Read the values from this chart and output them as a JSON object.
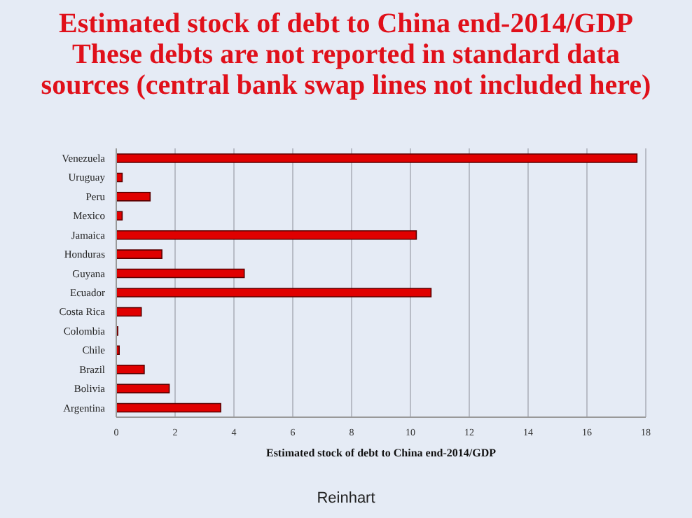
{
  "chart_data": {
    "type": "bar",
    "orientation": "horizontal",
    "title": "Estimated stock of debt to China end-2014/GDP",
    "subtitle": "These debts are not reported in standard data sources (central bank swap lines not included here)",
    "xlabel": "Estimated stock of debt to China end-2014/GDP",
    "categories": [
      "Venezuela",
      "Uruguay",
      "Peru",
      "Mexico",
      "Jamaica",
      "Honduras",
      "Guyana",
      "Ecuador",
      "Costa Rica",
      "Colombia",
      "Chile",
      "Brazil",
      "Bolivia",
      "Argentina"
    ],
    "values": [
      17.7,
      0.2,
      1.15,
      0.2,
      10.2,
      1.55,
      4.35,
      10.7,
      0.85,
      0.05,
      0.1,
      0.95,
      1.8,
      3.55
    ],
    "color": "#e00000",
    "xlim": [
      0,
      18
    ],
    "xticks": [
      0,
      2,
      4,
      6,
      8,
      10,
      12,
      14,
      16,
      18
    ],
    "grid": "x",
    "annotations": [
      "Reinhart"
    ]
  }
}
